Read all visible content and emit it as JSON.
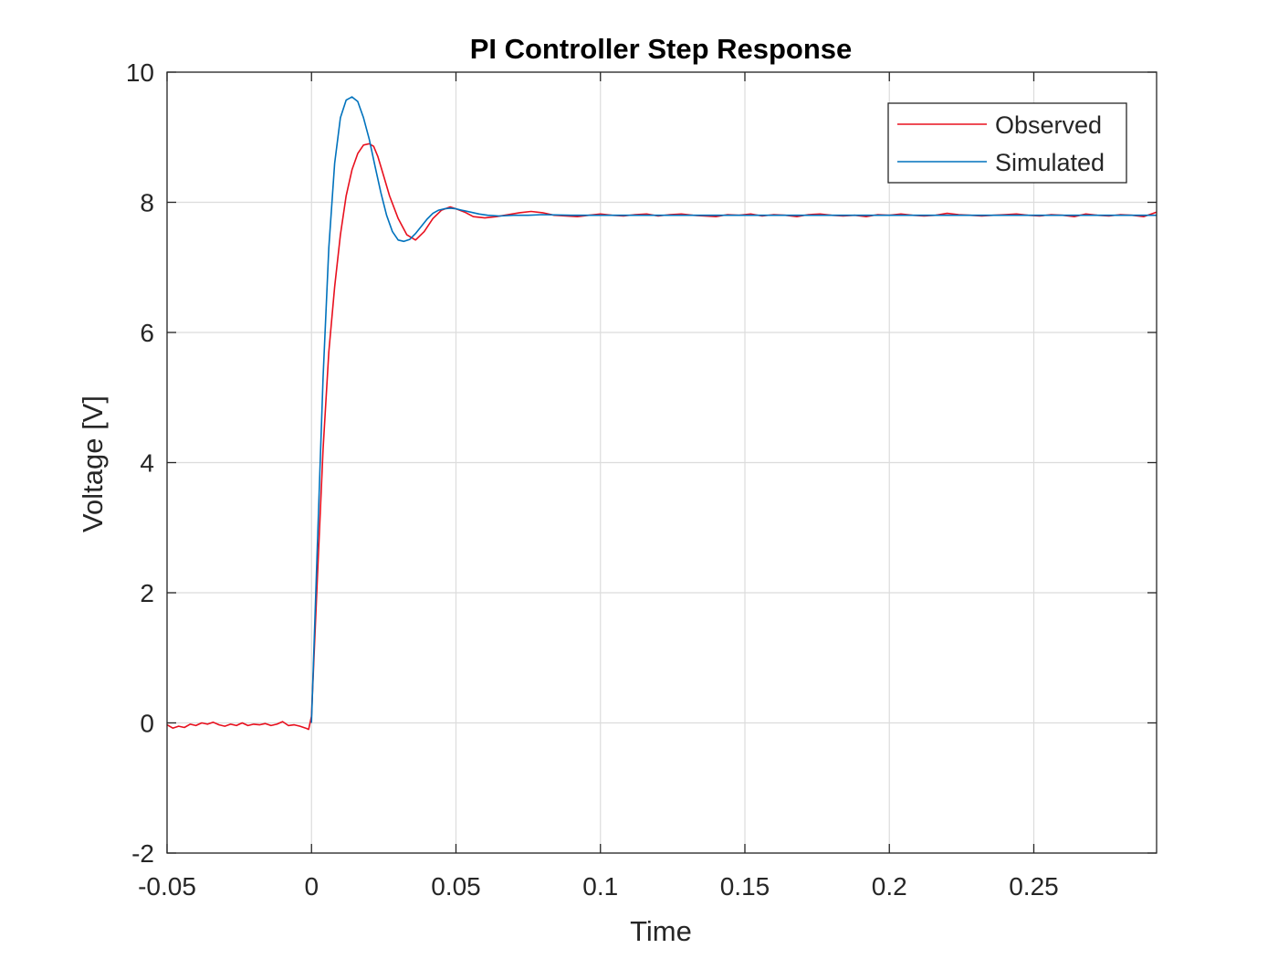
{
  "chart_data": {
    "type": "line",
    "title": "PI Controller Step Response",
    "xlabel": "Time",
    "ylabel": "Voltage [V]",
    "xlim": [
      -0.05,
      0.2925
    ],
    "ylim": [
      -2,
      10
    ],
    "xticks": [
      -0.05,
      0,
      0.05,
      0.1,
      0.15,
      0.2,
      0.25
    ],
    "xtick_labels": [
      "-0.05",
      "0",
      "0.05",
      "0.1",
      "0.15",
      "0.2",
      "0.25"
    ],
    "yticks": [
      -2,
      0,
      2,
      4,
      6,
      8,
      10
    ],
    "ytick_labels": [
      "-2",
      "0",
      "2",
      "4",
      "6",
      "8",
      "10"
    ],
    "grid": true,
    "legend": "top-right",
    "series": [
      {
        "name": "Observed",
        "color": "#e8101e",
        "x": [
          -0.05,
          -0.048,
          -0.046,
          -0.044,
          -0.042,
          -0.04,
          -0.038,
          -0.036,
          -0.034,
          -0.032,
          -0.03,
          -0.028,
          -0.026,
          -0.024,
          -0.022,
          -0.02,
          -0.018,
          -0.016,
          -0.014,
          -0.012,
          -0.01,
          -0.008,
          -0.006,
          -0.004,
          -0.002,
          -0.001,
          0,
          0.002,
          0.004,
          0.006,
          0.008,
          0.01,
          0.012,
          0.014,
          0.016,
          0.018,
          0.02,
          0.0215,
          0.023,
          0.025,
          0.027,
          0.03,
          0.033,
          0.036,
          0.039,
          0.042,
          0.045,
          0.048,
          0.05,
          0.053,
          0.056,
          0.06,
          0.064,
          0.068,
          0.072,
          0.076,
          0.08,
          0.084,
          0.088,
          0.092,
          0.096,
          0.1,
          0.104,
          0.108,
          0.112,
          0.116,
          0.12,
          0.124,
          0.128,
          0.132,
          0.136,
          0.14,
          0.144,
          0.148,
          0.152,
          0.156,
          0.16,
          0.164,
          0.168,
          0.172,
          0.176,
          0.18,
          0.184,
          0.188,
          0.192,
          0.196,
          0.2,
          0.204,
          0.208,
          0.212,
          0.216,
          0.22,
          0.224,
          0.228,
          0.232,
          0.236,
          0.24,
          0.244,
          0.248,
          0.252,
          0.256,
          0.26,
          0.264,
          0.268,
          0.272,
          0.276,
          0.28,
          0.284,
          0.288,
          0.2925
        ],
        "y": [
          -0.03,
          -0.08,
          -0.05,
          -0.07,
          -0.02,
          -0.04,
          0.0,
          -0.02,
          0.01,
          -0.03,
          -0.05,
          -0.02,
          -0.04,
          0.0,
          -0.04,
          -0.02,
          -0.03,
          -0.01,
          -0.04,
          -0.02,
          0.02,
          -0.04,
          -0.03,
          -0.05,
          -0.08,
          -0.1,
          0.1,
          2.2,
          4.2,
          5.7,
          6.7,
          7.5,
          8.1,
          8.5,
          8.75,
          8.88,
          8.9,
          8.86,
          8.7,
          8.4,
          8.1,
          7.75,
          7.5,
          7.42,
          7.55,
          7.75,
          7.88,
          7.93,
          7.9,
          7.85,
          7.78,
          7.76,
          7.78,
          7.81,
          7.84,
          7.86,
          7.84,
          7.8,
          7.79,
          7.78,
          7.8,
          7.82,
          7.8,
          7.79,
          7.81,
          7.82,
          7.79,
          7.81,
          7.82,
          7.8,
          7.79,
          7.78,
          7.81,
          7.8,
          7.82,
          7.79,
          7.81,
          7.8,
          7.78,
          7.81,
          7.82,
          7.8,
          7.79,
          7.8,
          7.78,
          7.81,
          7.8,
          7.82,
          7.8,
          7.79,
          7.8,
          7.83,
          7.81,
          7.8,
          7.79,
          7.8,
          7.81,
          7.82,
          7.8,
          7.79,
          7.81,
          7.8,
          7.78,
          7.82,
          7.8,
          7.79,
          7.81,
          7.8,
          7.78,
          7.85
        ]
      },
      {
        "name": "Simulated",
        "color": "#0072bd",
        "x": [
          0,
          0.002,
          0.004,
          0.006,
          0.008,
          0.01,
          0.012,
          0.014,
          0.016,
          0.018,
          0.02,
          0.022,
          0.024,
          0.026,
          0.028,
          0.03,
          0.032,
          0.034,
          0.036,
          0.038,
          0.04,
          0.042,
          0.044,
          0.046,
          0.048,
          0.05,
          0.052,
          0.055,
          0.058,
          0.061,
          0.065,
          0.07,
          0.075,
          0.08,
          0.09,
          0.1,
          0.12,
          0.15,
          0.2,
          0.25,
          0.2925
        ],
        "y": [
          0.0,
          2.7,
          5.3,
          7.3,
          8.6,
          9.3,
          9.57,
          9.62,
          9.55,
          9.3,
          8.97,
          8.55,
          8.15,
          7.8,
          7.55,
          7.42,
          7.4,
          7.43,
          7.52,
          7.63,
          7.74,
          7.83,
          7.88,
          7.9,
          7.91,
          7.9,
          7.88,
          7.85,
          7.82,
          7.8,
          7.79,
          7.8,
          7.8,
          7.81,
          7.8,
          7.8,
          7.8,
          7.8,
          7.8,
          7.8,
          7.8
        ]
      }
    ]
  }
}
